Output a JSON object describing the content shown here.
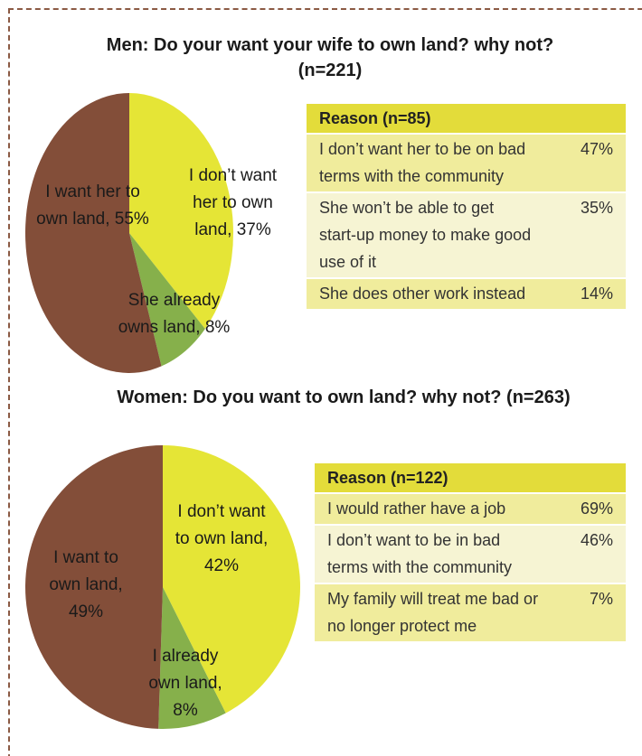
{
  "chart_data": [
    {
      "type": "pie",
      "title": "Men: Do your want your wife to own land? why not? (n=221)",
      "categories": [
        "I don’t want her to own land,",
        "She already owns land,",
        "I want her to own land,"
      ],
      "values": [
        37,
        8,
        55
      ],
      "value_labels": [
        "37%",
        "8%",
        "55%"
      ],
      "colors": [
        "#e5e536",
        "#86b04b",
        "#834e39"
      ]
    },
    {
      "type": "pie",
      "title": "Women: Do you want to own land? why not? (n=263)",
      "categories": [
        "I don’t want to own land,",
        "I already own land,",
        "I want to own land,"
      ],
      "values": [
        42,
        8,
        49
      ],
      "value_labels": [
        "42%",
        "8%",
        "49%"
      ],
      "colors": [
        "#e5e536",
        "#86b04b",
        "#834e39"
      ]
    }
  ],
  "tables": [
    {
      "header": "Reason (n=85)",
      "rows": [
        [
          "I don’t want her to be on bad terms with the community",
          "47%"
        ],
        [
          "She won’t  be able to get start-up money to make good use of it",
          "35%"
        ],
        [
          "She does other work instead",
          "14%"
        ]
      ]
    },
    {
      "header": "Reason (n=122)",
      "rows": [
        [
          "I would rather have a job",
          "69%"
        ],
        [
          "I don’t want to be in bad terms with the community",
          "46%"
        ],
        [
          "My family will treat me bad or no longer protect me",
          "7%"
        ]
      ]
    }
  ]
}
